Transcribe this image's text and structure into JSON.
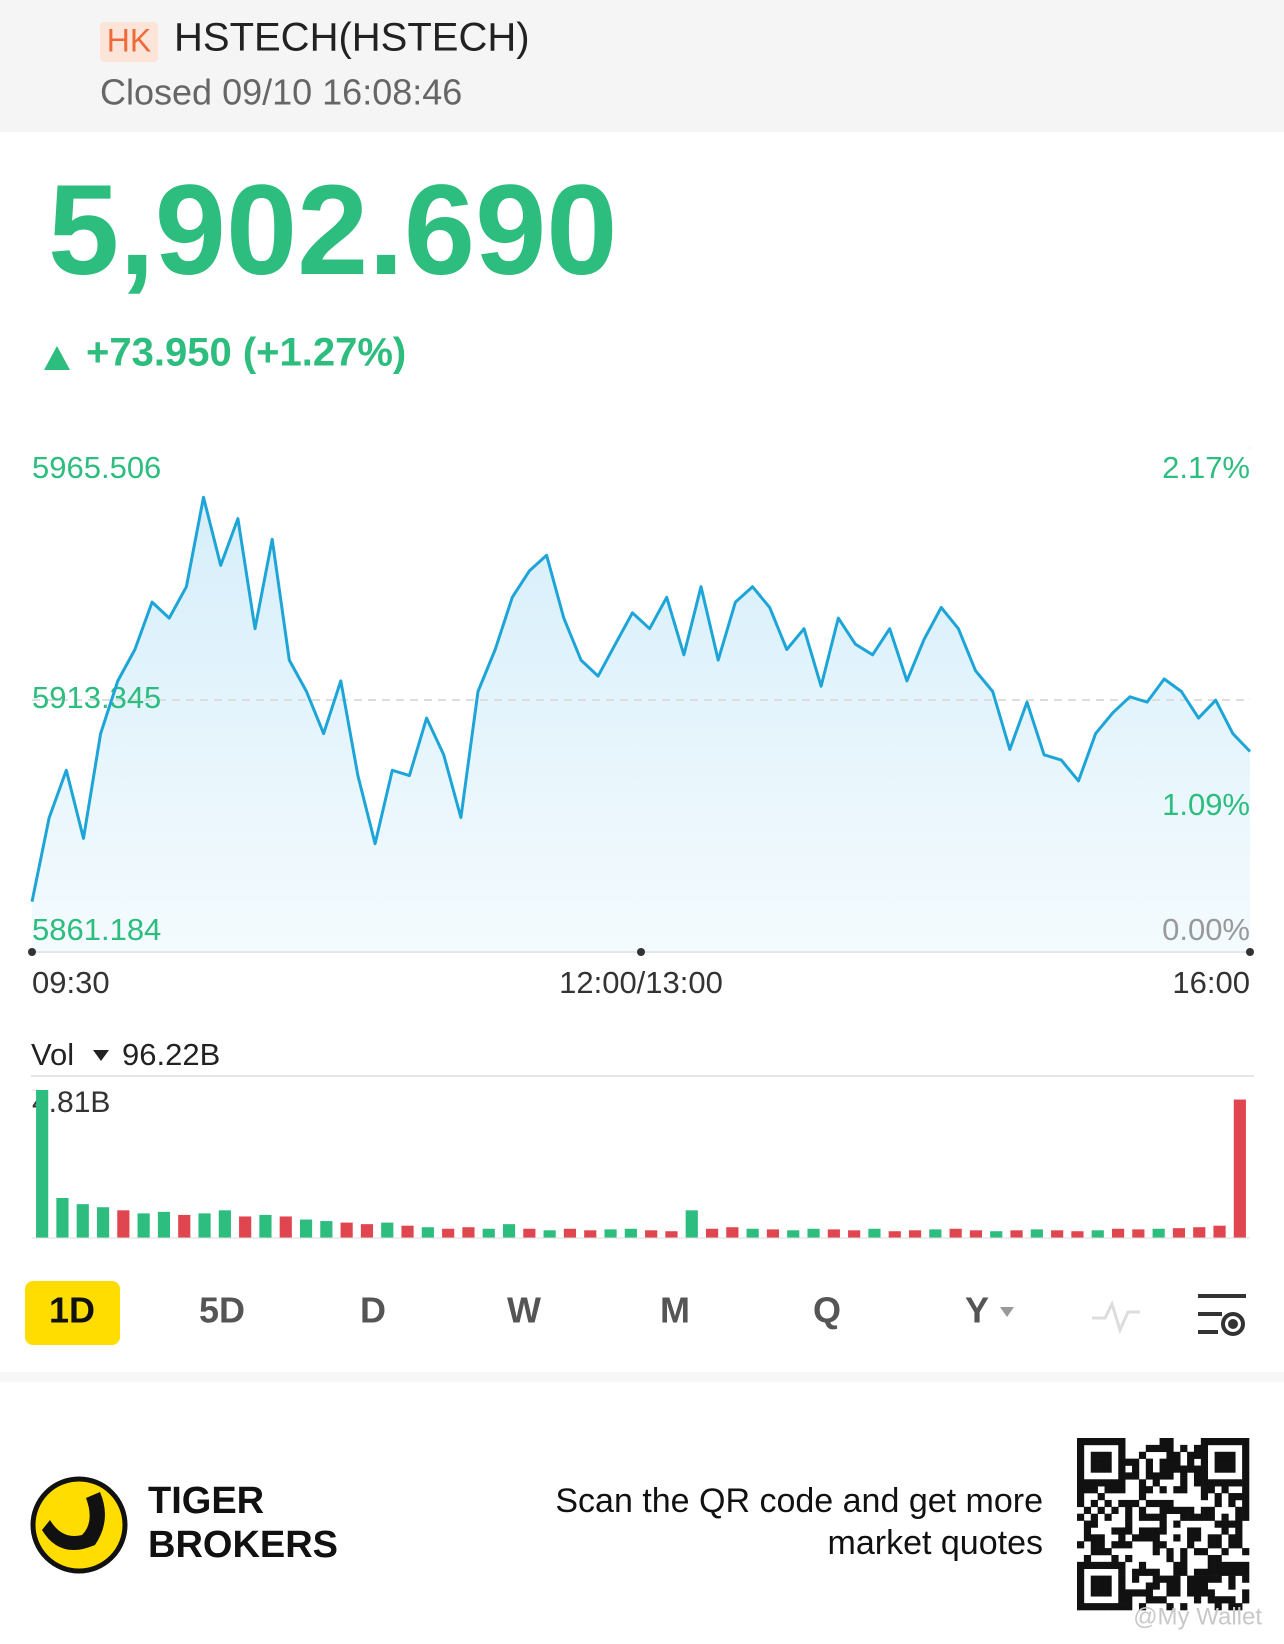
{
  "header": {
    "market": "HK",
    "title": "HSTECH(HSTECH)",
    "status": "Closed 09/10 16:08:46"
  },
  "quote": {
    "price": "5,902.690",
    "change": "+73.950 (+1.27%)"
  },
  "chart_data": [
    {
      "type": "line",
      "color": "#1ea5d8",
      "values": [
        5871.6,
        5889.0,
        5898.8,
        5884.7,
        5906.4,
        5917.3,
        5923.8,
        5933.6,
        5930.3,
        5936.8,
        5955.3,
        5941.2,
        5950.9,
        5928.1,
        5946.6,
        5921.6,
        5915.1,
        5906.4,
        5917.3,
        5897.7,
        5883.6,
        5898.8,
        5897.7,
        5909.6,
        5902.0,
        5889.0,
        5915.1,
        5923.8,
        5934.6,
        5940.1,
        5943.3,
        5930.3,
        5921.6,
        5918.3,
        5924.9,
        5931.4,
        5928.1,
        5934.6,
        5922.7,
        5936.8,
        5921.6,
        5933.6,
        5936.8,
        5932.5,
        5923.8,
        5928.1,
        5916.2,
        5930.3,
        5924.9,
        5922.7,
        5928.1,
        5917.3,
        5925.9,
        5932.5,
        5928.1,
        5919.4,
        5915.1,
        5903.1,
        5912.9,
        5902.0,
        5900.9,
        5896.6,
        5906.4,
        5910.7,
        5914.0,
        5912.9,
        5917.7,
        5915.1,
        5909.6,
        5913.3,
        5906.4,
        5902.69
      ],
      "ylim": [
        5861.184,
        5965.506
      ],
      "yticks": [
        5861.184,
        5913.345,
        5965.506
      ],
      "y2lim": [
        0,
        2.17
      ],
      "y2ticks": [
        {
          "value": 0,
          "label": "0.00%"
        },
        {
          "value": 1.09,
          "label": "1.09%"
        },
        {
          "value": 2.17,
          "label": "2.17%"
        }
      ],
      "xlabels": [
        "09:30",
        "12:00/13:00",
        "16:00"
      ],
      "grid": true
    },
    {
      "type": "bar",
      "title": "Vol",
      "total": "96.22B",
      "values": [
        4.81,
        1.3,
        1.1,
        1.0,
        0.9,
        0.8,
        0.85,
        0.75,
        0.8,
        0.9,
        0.7,
        0.75,
        0.7,
        0.6,
        0.55,
        0.5,
        0.45,
        0.5,
        0.4,
        0.35,
        0.3,
        0.35,
        0.3,
        0.45,
        0.3,
        0.25,
        0.3,
        0.25,
        0.28,
        0.3,
        0.25,
        0.22,
        0.9,
        0.3,
        0.35,
        0.3,
        0.28,
        0.25,
        0.3,
        0.28,
        0.25,
        0.3,
        0.22,
        0.25,
        0.28,
        0.3,
        0.25,
        0.22,
        0.25,
        0.28,
        0.25,
        0.22,
        0.25,
        0.3,
        0.28,
        0.3,
        0.32,
        0.35,
        0.4,
        4.5
      ],
      "colors": [
        "#2dbd7e",
        "#2dbd7e",
        "#2dbd7e",
        "#2dbd7e",
        "#e0464f",
        "#2dbd7e",
        "#2dbd7e",
        "#e0464f",
        "#2dbd7e",
        "#2dbd7e",
        "#e0464f",
        "#2dbd7e",
        "#e0464f",
        "#2dbd7e",
        "#2dbd7e",
        "#e0464f",
        "#e0464f",
        "#2dbd7e",
        "#e0464f",
        "#2dbd7e",
        "#e0464f",
        "#e0464f",
        "#2dbd7e",
        "#2dbd7e",
        "#e0464f",
        "#2dbd7e",
        "#e0464f",
        "#e0464f",
        "#2dbd7e",
        "#2dbd7e",
        "#e0464f",
        "#e0464f",
        "#2dbd7e",
        "#e0464f",
        "#e0464f",
        "#2dbd7e",
        "#e0464f",
        "#2dbd7e",
        "#2dbd7e",
        "#e0464f",
        "#e0464f",
        "#2dbd7e",
        "#e0464f",
        "#e0464f",
        "#2dbd7e",
        "#e0464f",
        "#e0464f",
        "#2dbd7e",
        "#e0464f",
        "#2dbd7e",
        "#e0464f",
        "#e0464f",
        "#2dbd7e",
        "#e0464f",
        "#e0464f",
        "#2dbd7e",
        "#e0464f",
        "#e0464f",
        "#e0464f",
        "#e0464f"
      ],
      "ylim": [
        0,
        4.81
      ],
      "yticks": [
        {
          "value": 4.81,
          "label": "4.81B"
        }
      ]
    }
  ],
  "tabs": [
    "1D",
    "5D",
    "D",
    "W",
    "M",
    "Q",
    "Y"
  ],
  "footer": {
    "brand": [
      "TIGER",
      "BROKERS"
    ],
    "promo": [
      "Scan the QR code and get more",
      "market quotes"
    ],
    "watermark": "@My Wallet"
  }
}
